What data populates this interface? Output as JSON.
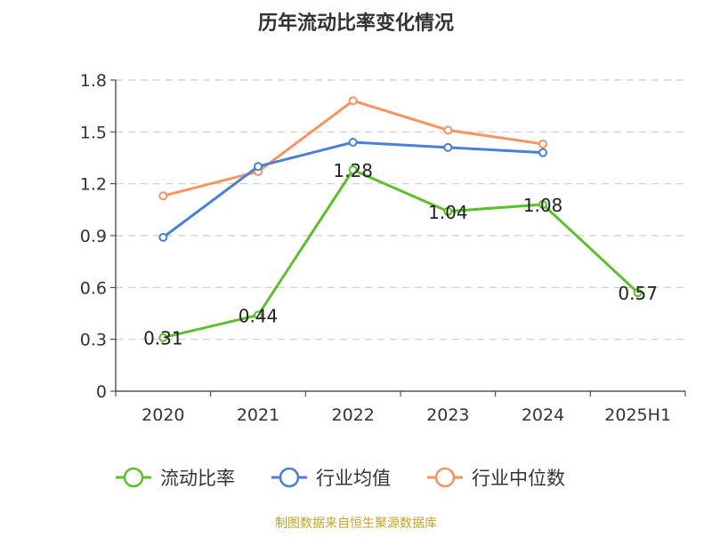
{
  "chart_data": {
    "type": "line",
    "title": "历年流动比率变化情况",
    "categories": [
      "2020",
      "2021",
      "2022",
      "2023",
      "2024",
      "2025H1"
    ],
    "yticks": [
      "0",
      "0.3",
      "0.6",
      "0.9",
      "1.2",
      "1.5",
      "1.8"
    ],
    "ylim": [
      0,
      1.8
    ],
    "grid": true,
    "legend_position": "bottom",
    "series": [
      {
        "name": "流动比率",
        "color": "#5cc02d",
        "values": [
          0.31,
          0.44,
          1.28,
          1.04,
          1.08,
          0.57
        ],
        "show_labels": true
      },
      {
        "name": "行业均值",
        "color": "#4a7fd8",
        "values": [
          0.89,
          1.3,
          1.44,
          1.41,
          1.38,
          null
        ],
        "show_labels": false
      },
      {
        "name": "行业中位数",
        "color": "#f59462",
        "values": [
          1.13,
          1.27,
          1.68,
          1.51,
          1.43,
          null
        ],
        "show_labels": false
      }
    ],
    "labels": [
      "0.31",
      "0.44",
      "1.28",
      "1.04",
      "1.08",
      "0.57"
    ]
  },
  "source_text": "制图数据来自恒生聚源数据库",
  "colors": {
    "source": "#c9a227",
    "axis": "#333333",
    "grid": "#cccccc"
  }
}
